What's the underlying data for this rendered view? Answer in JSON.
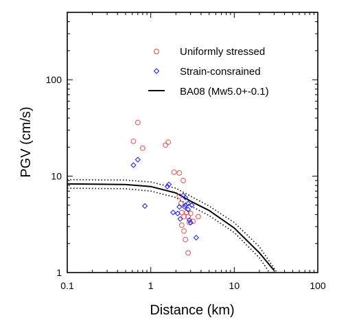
{
  "chart_data": {
    "type": "scatter",
    "xlabel": "Distance (km)",
    "ylabel": "PGV (cm/s)",
    "x_scale": "log",
    "y_scale": "log",
    "xlim": [
      0.1,
      100
    ],
    "ylim": [
      1,
      500
    ],
    "x_ticks": [
      "0.1",
      "1",
      "10",
      "100"
    ],
    "y_ticks": [
      "1",
      "10",
      "100"
    ],
    "legend_position": "top-right",
    "colors": {
      "uniform": "#e06060",
      "strain": "#2a2ae0",
      "ba08": "#000000"
    },
    "series": [
      {
        "name": "Uniformly stressed",
        "marker": "circle",
        "points": [
          [
            0.62,
            23
          ],
          [
            0.7,
            36
          ],
          [
            0.8,
            19.5
          ],
          [
            1.5,
            21
          ],
          [
            1.62,
            22.5
          ],
          [
            1.9,
            11
          ],
          [
            2.2,
            10.8
          ],
          [
            2.45,
            9
          ],
          [
            2.2,
            6.2
          ],
          [
            2.3,
            5.2
          ],
          [
            2.35,
            4.2
          ],
          [
            2.5,
            3.8
          ],
          [
            2.7,
            4.2
          ],
          [
            2.35,
            3.1
          ],
          [
            2.5,
            2.7
          ],
          [
            2.6,
            2.2
          ],
          [
            2.8,
            3.8
          ],
          [
            3.0,
            4.1
          ],
          [
            2.9,
            3.3
          ],
          [
            3.2,
            3.4
          ],
          [
            3.7,
            3.8
          ],
          [
            2.8,
            1.6
          ]
        ]
      },
      {
        "name": "Strain-consrained",
        "marker": "diamond",
        "points": [
          [
            0.62,
            13
          ],
          [
            0.7,
            14.8
          ],
          [
            0.85,
            4.9
          ],
          [
            1.58,
            7.8
          ],
          [
            1.65,
            8.2
          ],
          [
            1.85,
            4.2
          ],
          [
            2.1,
            4.1
          ],
          [
            2.2,
            4.8
          ],
          [
            2.25,
            3.6
          ],
          [
            2.45,
            6.3
          ],
          [
            2.6,
            5.0
          ],
          [
            2.55,
            4.8
          ],
          [
            2.8,
            5.2
          ],
          [
            2.8,
            4.5
          ],
          [
            3.1,
            5.0
          ],
          [
            2.9,
            3.5
          ],
          [
            3.0,
            3.3
          ],
          [
            3.5,
            2.3
          ],
          [
            2.6,
            6.0
          ]
        ]
      },
      {
        "name": "BA08 (Mw5.0+-0.1)",
        "style": "solid",
        "points": [
          [
            0.1,
            8.3
          ],
          [
            0.5,
            8.2
          ],
          [
            1,
            7.8
          ],
          [
            2,
            6.7
          ],
          [
            3,
            5.5
          ],
          [
            5,
            4.4
          ],
          [
            10,
            2.9
          ],
          [
            20,
            1.6
          ],
          [
            30,
            1.05
          ]
        ]
      },
      {
        "style": "dotted",
        "points": [
          [
            0.1,
            9.2
          ],
          [
            0.5,
            9.1
          ],
          [
            1,
            8.7
          ],
          [
            2,
            7.5
          ],
          [
            3,
            6.2
          ],
          [
            5,
            4.9
          ],
          [
            10,
            3.3
          ],
          [
            20,
            1.85
          ],
          [
            32,
            1.02
          ]
        ]
      },
      {
        "style": "dotted",
        "points": [
          [
            0.1,
            7.5
          ],
          [
            0.5,
            7.4
          ],
          [
            1,
            7.0
          ],
          [
            2,
            6.0
          ],
          [
            3,
            4.9
          ],
          [
            5,
            3.9
          ],
          [
            10,
            2.6
          ],
          [
            20,
            1.42
          ],
          [
            26,
            1.02
          ]
        ]
      }
    ]
  }
}
